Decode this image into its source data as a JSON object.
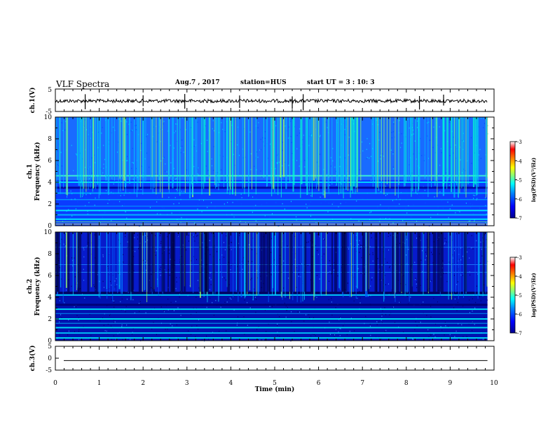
{
  "header": {
    "title": "VLF Spectra",
    "date": "Aug.7 , 2017",
    "station": "station=HUS",
    "start_ut": "start UT = 3 : 10: 3"
  },
  "colors": {
    "background": "#ffffff",
    "axes": "#000000",
    "colormap": [
      "#00008f",
      "#0000ff",
      "#0080ff",
      "#00ffff",
      "#80ff80",
      "#ffff00",
      "#ff8000",
      "#ff0000",
      "#ffffff"
    ]
  },
  "chart_data": [
    {
      "type": "line",
      "panel": "ch1-waveform",
      "ylabel": "ch.1(V)",
      "ylim": [
        -5,
        5
      ],
      "yticks": [
        "5",
        "-5"
      ],
      "series": [
        {
          "values_description_level": 0,
          "spike_times_min": [
            0.68,
            2.0,
            2.95,
            4.2,
            5.4,
            5.65,
            8.3,
            8.85
          ]
        }
      ],
      "xlim": [
        0,
        10
      ]
    },
    {
      "type": "heatmap",
      "panel": "ch1-spectrogram",
      "ylabel_line1": "ch.1",
      "ylabel_line2": "Frequency (kHz)",
      "ylim": [
        0,
        10
      ],
      "yticks": [
        "0",
        "2",
        "4",
        "6",
        "8",
        "10"
      ],
      "xlim": [
        0,
        10
      ],
      "data_end_min": 9.85,
      "colorbar": {
        "label": "log(PSD)(V²/Hz)",
        "ticks": [
          "-3",
          "-4",
          "-5",
          "-6",
          "-7"
        ],
        "range": [
          -7,
          -3
        ]
      }
    },
    {
      "type": "heatmap",
      "panel": "ch2-spectrogram",
      "ylabel_line1": "ch.2",
      "ylabel_line2": "Frequency (kHz)",
      "ylim": [
        0,
        10
      ],
      "yticks": [
        "0",
        "2",
        "4",
        "6",
        "8",
        "10"
      ],
      "xlim": [
        0,
        10
      ],
      "data_end_min": 9.85,
      "colorbar": {
        "label": "log(PSD)(V²/Hz)",
        "ticks": [
          "-3",
          "-4",
          "-5",
          "-6",
          "-7"
        ],
        "range": [
          -7,
          -3
        ]
      }
    },
    {
      "type": "line",
      "panel": "ch3-waveform",
      "ylabel": "ch.3(V)",
      "ylim": [
        -5,
        5
      ],
      "yticks": [
        "5",
        "0",
        "-5"
      ],
      "series": [
        {
          "constant_value": -1
        }
      ],
      "xlim": [
        0,
        10
      ],
      "xlabel": "Time (min)",
      "xticks": [
        "0",
        "1",
        "2",
        "3",
        "4",
        "5",
        "6",
        "7",
        "8",
        "9",
        "10"
      ]
    }
  ]
}
